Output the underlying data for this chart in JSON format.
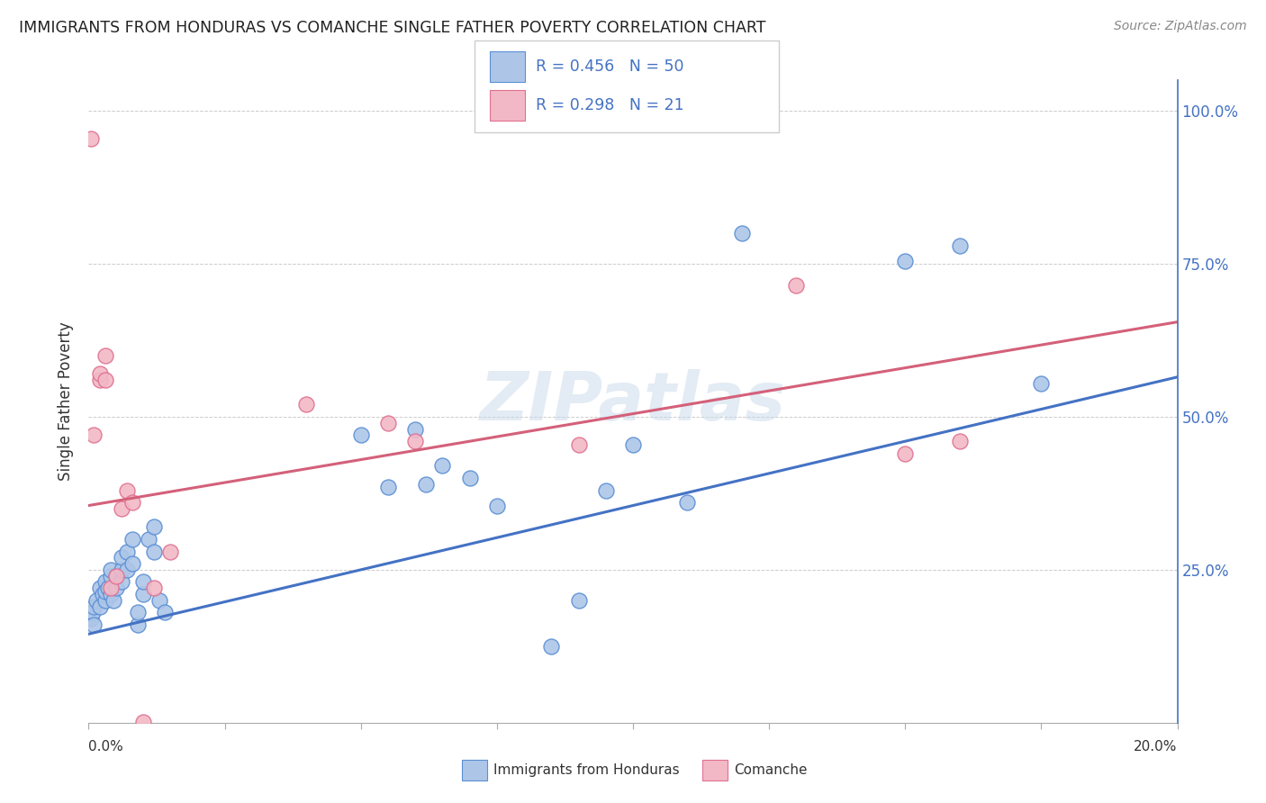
{
  "title": "IMMIGRANTS FROM HONDURAS VS COMANCHE SINGLE FATHER POVERTY CORRELATION CHART",
  "source": "Source: ZipAtlas.com",
  "ylabel": "Single Father Poverty",
  "blue_R": 0.456,
  "blue_N": 50,
  "pink_R": 0.298,
  "pink_N": 21,
  "blue_color": "#adc6e8",
  "blue_edge_color": "#5b8fd4",
  "blue_line_color": "#4472c4",
  "pink_color": "#f2b8c6",
  "pink_edge_color": "#e07090",
  "pink_line_color": "#d4607a",
  "legend_text_color": "#4472c4",
  "watermark": "ZIPatlas",
  "blue_points_x": [
    0.0005,
    0.0008,
    0.001,
    0.001,
    0.0015,
    0.002,
    0.002,
    0.0025,
    0.003,
    0.003,
    0.003,
    0.0035,
    0.004,
    0.004,
    0.004,
    0.0045,
    0.005,
    0.005,
    0.006,
    0.006,
    0.006,
    0.007,
    0.007,
    0.008,
    0.008,
    0.009,
    0.009,
    0.01,
    0.01,
    0.011,
    0.012,
    0.012,
    0.013,
    0.014,
    0.05,
    0.055,
    0.06,
    0.062,
    0.065,
    0.07,
    0.075,
    0.085,
    0.09,
    0.095,
    0.1,
    0.11,
    0.12,
    0.15,
    0.16,
    0.175
  ],
  "blue_points_y": [
    0.17,
    0.18,
    0.19,
    0.16,
    0.2,
    0.22,
    0.19,
    0.21,
    0.2,
    0.23,
    0.215,
    0.22,
    0.24,
    0.25,
    0.21,
    0.2,
    0.22,
    0.24,
    0.23,
    0.25,
    0.27,
    0.25,
    0.28,
    0.26,
    0.3,
    0.16,
    0.18,
    0.21,
    0.23,
    0.3,
    0.28,
    0.32,
    0.2,
    0.18,
    0.47,
    0.385,
    0.48,
    0.39,
    0.42,
    0.4,
    0.355,
    0.125,
    0.2,
    0.38,
    0.455,
    0.36,
    0.8,
    0.755,
    0.78,
    0.555
  ],
  "pink_points_x": [
    0.0005,
    0.001,
    0.002,
    0.002,
    0.003,
    0.003,
    0.004,
    0.005,
    0.006,
    0.007,
    0.008,
    0.01,
    0.012,
    0.015,
    0.04,
    0.055,
    0.06,
    0.09,
    0.13,
    0.15,
    0.16
  ],
  "pink_points_y": [
    0.955,
    0.47,
    0.56,
    0.57,
    0.6,
    0.56,
    0.22,
    0.24,
    0.35,
    0.38,
    0.36,
    0.001,
    0.22,
    0.28,
    0.52,
    0.49,
    0.46,
    0.455,
    0.715,
    0.44,
    0.46
  ],
  "xlim": [
    0.0,
    0.2
  ],
  "ylim": [
    0.0,
    1.05
  ],
  "blue_trend_x": [
    0.0,
    0.2
  ],
  "blue_trend_y": [
    0.145,
    0.565
  ],
  "pink_trend_x": [
    0.0,
    0.2
  ],
  "pink_trend_y": [
    0.355,
    0.655
  ]
}
